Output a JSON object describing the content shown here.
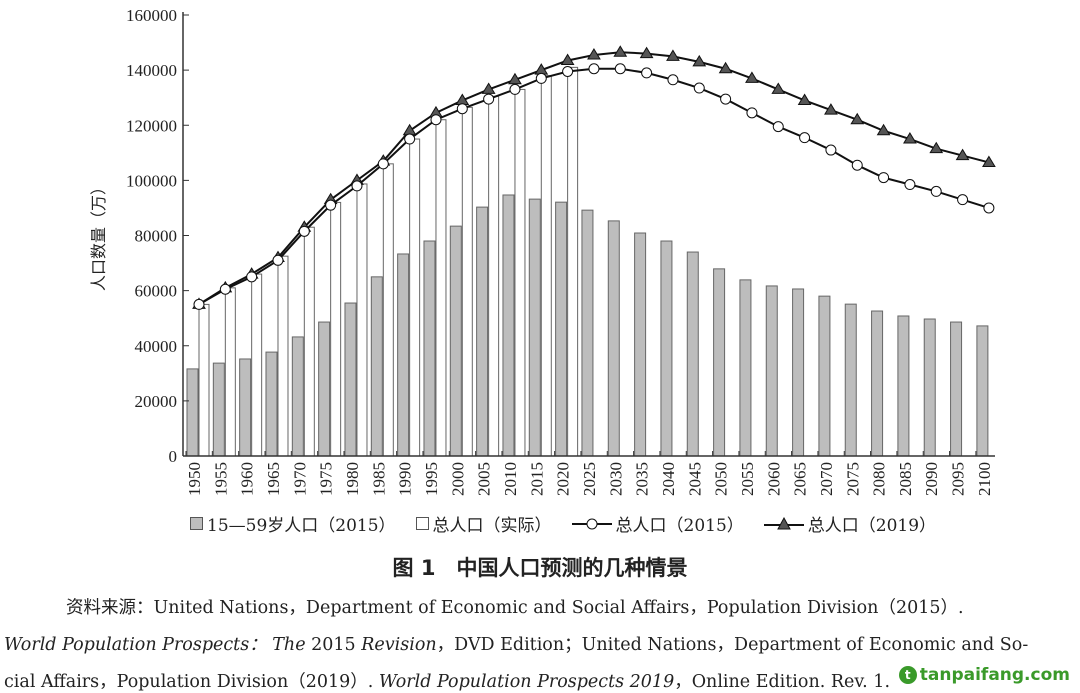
{
  "chart_data": {
    "type": "bar",
    "title": "图 1　中国人口预测的几种情景",
    "xlabel": "",
    "ylabel": "人口数量（万）",
    "ylim": [
      0,
      160000
    ],
    "yticks": [
      0,
      20000,
      40000,
      60000,
      80000,
      100000,
      120000,
      140000,
      160000
    ],
    "categories": [
      "1950",
      "1955",
      "1960",
      "1965",
      "1970",
      "1975",
      "1980",
      "1985",
      "1990",
      "1995",
      "2000",
      "2005",
      "2010",
      "2015",
      "2020",
      "2025",
      "2030",
      "2035",
      "2040",
      "2045",
      "2050",
      "2055",
      "2060",
      "2065",
      "2070",
      "2075",
      "2080",
      "2085",
      "2090",
      "2095",
      "2100"
    ],
    "series": [
      {
        "name": "15—59岁人口（2015）",
        "kind": "bar-gray",
        "values": [
          31600,
          33700,
          35200,
          37700,
          43200,
          48600,
          55500,
          65000,
          73300,
          78000,
          83400,
          90300,
          94700,
          93200,
          92100,
          89200,
          85300,
          80900,
          78000,
          74000,
          67900,
          63900,
          61700,
          60600,
          58000,
          55100,
          52600,
          50800,
          49700,
          48600,
          47200
        ]
      },
      {
        "name": "总人口（实际）",
        "kind": "bar-open",
        "values": [
          55000,
          61000,
          66000,
          72500,
          83000,
          92000,
          98700,
          106000,
          115000,
          122000,
          126500,
          130500,
          133000,
          138000,
          141000,
          null,
          null,
          null,
          null,
          null,
          null,
          null,
          null,
          null,
          null,
          null,
          null,
          null,
          null,
          null,
          null
        ]
      },
      {
        "name": "总人口（2015）",
        "kind": "line-circle",
        "values": [
          55000,
          60500,
          65000,
          71000,
          81500,
          91000,
          98000,
          106000,
          115000,
          122000,
          126000,
          129500,
          133000,
          137000,
          139500,
          140500,
          140500,
          139000,
          136500,
          133500,
          129500,
          124500,
          119500,
          115500,
          111000,
          105500,
          101000,
          98500,
          96000,
          93000,
          90000
        ]
      },
      {
        "name": "总人口（2019）",
        "kind": "line-triangle",
        "values": [
          55000,
          61000,
          66000,
          72000,
          83000,
          93000,
          100000,
          107000,
          118000,
          124500,
          129000,
          133000,
          136500,
          140000,
          143500,
          145500,
          146500,
          146000,
          145000,
          143000,
          140500,
          137000,
          133000,
          129000,
          125500,
          122000,
          118000,
          115000,
          111500,
          109000,
          106500
        ]
      }
    ],
    "legend": "bottom"
  },
  "legend": {
    "gray": "15—59岁人口（2015）",
    "open": "总人口（实际）",
    "circle": "总人口（2015）",
    "triangle": "总人口（2019）"
  },
  "source": {
    "line1": "资料来源：United Nations，Department of Economic and Social Affairs，Population Division（2015）.",
    "line2a": "World Population Prospects： The",
    "line2b": " 2015 ",
    "line2c": "Revision",
    "line2d": "，DVD Edition；United Nations，Department of Economic and So-",
    "line3a": "cial Affairs，Population Division（2019）. ",
    "line3b": "World Population Prospects 2019",
    "line3c": "，Online Edition. Rev. 1."
  },
  "watermark": "tanpaifang.com",
  "colors": {
    "bar_gray": "#bdbdbd",
    "line": "#111111",
    "triangle": "#555555"
  }
}
